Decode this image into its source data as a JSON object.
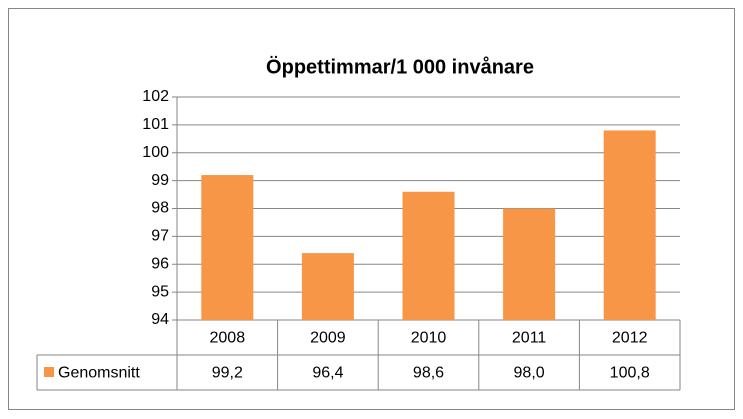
{
  "chart_data": {
    "type": "bar",
    "title": "Öppettimmar/1 000 invånare",
    "categories": [
      "2008",
      "2009",
      "2010",
      "2011",
      "2012"
    ],
    "series": [
      {
        "name": "Genomsnitt",
        "color": "#f79646",
        "values": [
          99.2,
          96.4,
          98.6,
          98.0,
          100.8
        ],
        "value_labels": [
          "99,2",
          "96,4",
          "98,6",
          "98,0",
          "100,8"
        ]
      }
    ],
    "ylim": [
      94,
      102
    ],
    "yticks": [
      94,
      95,
      96,
      97,
      98,
      99,
      100,
      101,
      102
    ],
    "grid": true
  }
}
